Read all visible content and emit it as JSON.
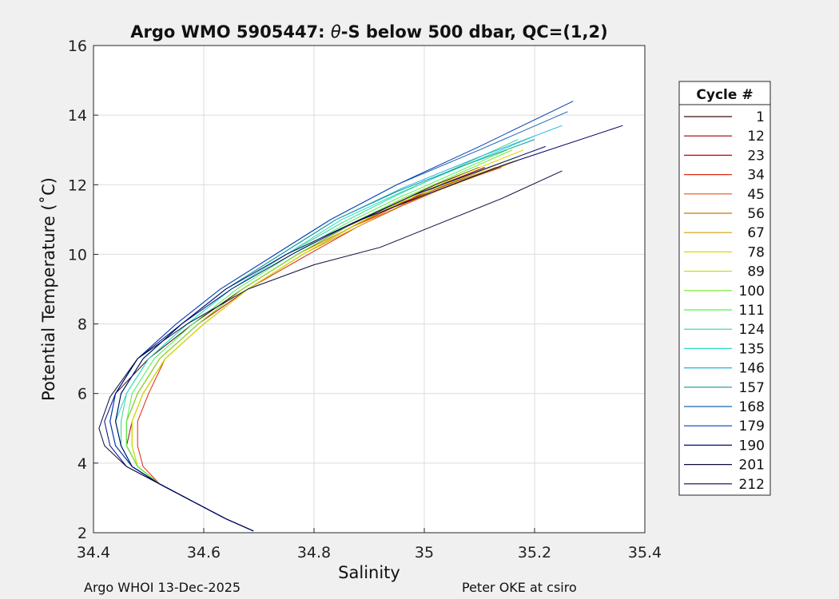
{
  "chart_data": {
    "type": "line",
    "title_prefix": "Argo WMO 5905447: ",
    "title_symbol": "θ",
    "title_suffix": "-S below 500 dbar,  QC=(1,2)",
    "xlabel": "Salinity",
    "ylabel": "Potential Temperature (˚C)",
    "xlim": [
      34.4,
      35.4
    ],
    "ylim": [
      2,
      16
    ],
    "xticks": [
      "34.4",
      "34.6",
      "34.8",
      "35",
      "35.2",
      "35.4"
    ],
    "yticks": [
      "2",
      "4",
      "6",
      "8",
      "10",
      "12",
      "14",
      "16"
    ],
    "grid": true,
    "legend_title": "Cycle #",
    "legend_position": "right-outside",
    "legend": [
      "1",
      "12",
      "23",
      "34",
      "45",
      "56",
      "67",
      "78",
      "89",
      "100",
      "111",
      "124",
      "135",
      "146",
      "157",
      "168",
      "179",
      "190",
      "201",
      "212"
    ],
    "colors": [
      "#3a0a0a",
      "#a00000",
      "#c80000",
      "#dc2810",
      "#e65014",
      "#c87800",
      "#d2a000",
      "#e6d200",
      "#c8e600",
      "#78e628",
      "#50f050",
      "#3cd296",
      "#28dcc8",
      "#1eb4dc",
      "#149696",
      "#1464b4",
      "#0a3cb4",
      "#000a78",
      "#0a0a3c",
      "#000064"
    ],
    "series": [
      {
        "salinity": [
          34.69,
          34.64,
          34.58,
          34.52,
          34.47,
          34.44,
          34.43,
          34.44,
          34.5,
          34.58,
          34.67,
          34.77,
          34.86,
          34.94,
          35.02,
          35.1
        ],
        "theta": [
          2.05,
          2.4,
          2.9,
          3.4,
          3.9,
          4.5,
          5.2,
          6.0,
          7.0,
          8.0,
          9.0,
          10.0,
          10.8,
          11.4,
          12.0,
          12.5
        ]
      },
      {
        "salinity": [
          34.69,
          34.64,
          34.58,
          34.52,
          34.48,
          34.46,
          34.47,
          34.49,
          34.53,
          34.6,
          34.68,
          34.78,
          34.87,
          34.95,
          35.03,
          35.11
        ],
        "theta": [
          2.05,
          2.4,
          2.9,
          3.4,
          3.9,
          4.5,
          5.2,
          6.0,
          7.0,
          8.0,
          9.0,
          10.0,
          10.8,
          11.4,
          12.0,
          12.5
        ]
      },
      {
        "salinity": [
          34.69,
          34.64,
          34.58,
          34.52,
          34.48,
          34.46,
          34.46,
          34.48,
          34.52,
          34.59,
          34.68,
          34.78,
          34.87,
          34.95,
          35.04,
          35.12
        ],
        "theta": [
          2.05,
          2.4,
          2.9,
          3.4,
          3.9,
          4.5,
          5.2,
          6.0,
          7.0,
          8.0,
          9.0,
          10.0,
          10.8,
          11.4,
          12.0,
          12.5
        ]
      },
      {
        "salinity": [
          34.69,
          34.64,
          34.58,
          34.52,
          34.49,
          34.48,
          34.48,
          34.5,
          34.53,
          34.6,
          34.68,
          34.79,
          34.88,
          34.96,
          35.05,
          35.14
        ],
        "theta": [
          2.05,
          2.4,
          2.9,
          3.4,
          3.9,
          4.5,
          5.2,
          6.0,
          7.0,
          8.0,
          9.0,
          10.0,
          10.8,
          11.4,
          12.0,
          12.5
        ]
      },
      {
        "salinity": [
          34.69,
          34.64,
          34.58,
          34.52,
          34.48,
          34.47,
          34.47,
          34.49,
          34.53,
          34.6,
          34.68,
          34.78,
          34.87,
          34.96,
          35.05,
          35.13
        ],
        "theta": [
          2.05,
          2.4,
          2.9,
          3.4,
          3.9,
          4.5,
          5.2,
          6.0,
          7.0,
          8.0,
          9.0,
          10.0,
          10.8,
          11.4,
          12.0,
          12.5
        ]
      },
      {
        "salinity": [
          34.69,
          34.64,
          34.58,
          34.52,
          34.48,
          34.46,
          34.46,
          34.48,
          34.52,
          34.59,
          34.67,
          34.77,
          34.87,
          34.96,
          35.06,
          35.15
        ],
        "theta": [
          2.05,
          2.4,
          2.9,
          3.4,
          3.9,
          4.5,
          5.2,
          6.0,
          7.0,
          8.0,
          9.0,
          10.0,
          10.8,
          11.5,
          12.1,
          12.6
        ]
      },
      {
        "salinity": [
          34.69,
          34.64,
          34.58,
          34.52,
          34.48,
          34.47,
          34.47,
          34.49,
          34.53,
          34.6,
          34.68,
          34.78,
          34.88,
          34.97,
          35.07,
          35.17
        ],
        "theta": [
          2.05,
          2.4,
          2.9,
          3.4,
          3.9,
          4.5,
          5.2,
          6.0,
          7.0,
          8.0,
          9.0,
          10.0,
          10.8,
          11.5,
          12.1,
          12.7
        ]
      },
      {
        "salinity": [
          34.69,
          34.64,
          34.58,
          34.52,
          34.48,
          34.47,
          34.47,
          34.49,
          34.53,
          34.6,
          34.68,
          34.78,
          34.88,
          34.97,
          35.07,
          35.18
        ],
        "theta": [
          2.05,
          2.4,
          2.9,
          3.4,
          3.9,
          4.5,
          5.2,
          6.0,
          7.0,
          8.0,
          9.0,
          10.0,
          10.9,
          11.6,
          12.3,
          13.0
        ]
      },
      {
        "salinity": [
          34.69,
          34.64,
          34.58,
          34.52,
          34.48,
          34.47,
          34.47,
          34.49,
          34.53,
          34.6,
          34.68,
          34.78,
          34.88,
          34.97,
          35.07,
          35.17
        ],
        "theta": [
          2.05,
          2.4,
          2.9,
          3.4,
          3.9,
          4.5,
          5.2,
          6.0,
          7.0,
          8.0,
          9.0,
          10.0,
          10.9,
          11.6,
          12.2,
          12.8
        ]
      },
      {
        "salinity": [
          34.69,
          34.64,
          34.58,
          34.52,
          34.48,
          34.46,
          34.46,
          34.48,
          34.52,
          34.59,
          34.67,
          34.77,
          34.87,
          34.96,
          35.06,
          35.16
        ],
        "theta": [
          2.05,
          2.4,
          2.9,
          3.4,
          3.9,
          4.5,
          5.2,
          6.0,
          7.0,
          8.0,
          9.0,
          10.0,
          10.9,
          11.6,
          12.3,
          13.0
        ]
      },
      {
        "salinity": [
          34.69,
          34.64,
          34.58,
          34.52,
          34.48,
          34.46,
          34.46,
          34.47,
          34.51,
          34.58,
          34.66,
          34.76,
          34.86,
          34.95,
          35.05,
          35.15
        ],
        "theta": [
          2.05,
          2.4,
          2.9,
          3.4,
          3.9,
          4.5,
          5.2,
          6.0,
          7.0,
          8.0,
          9.0,
          10.0,
          10.9,
          11.6,
          12.3,
          13.0
        ]
      },
      {
        "salinity": [
          34.69,
          34.64,
          34.58,
          34.52,
          34.47,
          34.45,
          34.45,
          34.46,
          34.5,
          34.57,
          34.65,
          34.75,
          34.85,
          34.95,
          35.06,
          35.17
        ],
        "theta": [
          2.05,
          2.4,
          2.9,
          3.4,
          3.9,
          4.5,
          5.2,
          6.0,
          7.0,
          8.0,
          9.0,
          10.0,
          10.9,
          11.7,
          12.5,
          13.3
        ]
      },
      {
        "salinity": [
          34.69,
          34.64,
          34.58,
          34.52,
          34.47,
          34.45,
          34.44,
          34.46,
          34.5,
          34.57,
          34.65,
          34.75,
          34.85,
          34.96,
          35.08,
          35.2
        ],
        "theta": [
          2.05,
          2.4,
          2.9,
          3.4,
          3.9,
          4.5,
          5.2,
          6.0,
          7.0,
          8.0,
          9.0,
          10.0,
          11.0,
          11.8,
          12.6,
          13.4
        ]
      },
      {
        "salinity": [
          34.69,
          34.64,
          34.58,
          34.52,
          34.47,
          34.45,
          34.44,
          34.45,
          34.49,
          34.56,
          34.64,
          34.74,
          34.84,
          34.96,
          35.1,
          35.25
        ],
        "theta": [
          2.05,
          2.4,
          2.9,
          3.4,
          3.9,
          4.5,
          5.2,
          6.0,
          7.0,
          8.0,
          9.0,
          10.0,
          11.0,
          11.9,
          12.8,
          13.7
        ]
      },
      {
        "salinity": [
          34.69,
          34.64,
          34.58,
          34.52,
          34.47,
          34.45,
          34.44,
          34.45,
          34.49,
          34.56,
          34.64,
          34.74,
          34.84,
          34.95,
          35.08,
          35.2
        ],
        "theta": [
          2.05,
          2.4,
          2.9,
          3.4,
          3.9,
          4.5,
          5.2,
          6.0,
          7.0,
          8.0,
          9.0,
          10.0,
          11.0,
          11.8,
          12.6,
          13.3
        ]
      },
      {
        "salinity": [
          34.69,
          34.64,
          34.58,
          34.52,
          34.47,
          34.44,
          34.43,
          34.44,
          34.48,
          34.55,
          34.63,
          34.73,
          34.83,
          34.95,
          35.1,
          35.26
        ],
        "theta": [
          2.05,
          2.4,
          2.9,
          3.4,
          3.9,
          4.5,
          5.2,
          6.0,
          7.0,
          8.0,
          9.0,
          10.0,
          11.0,
          12.0,
          13.0,
          14.1
        ]
      },
      {
        "salinity": [
          34.69,
          34.64,
          34.58,
          34.52,
          34.47,
          34.44,
          34.43,
          34.44,
          34.48,
          34.55,
          34.63,
          34.73,
          34.83,
          34.95,
          35.1,
          35.27
        ],
        "theta": [
          2.05,
          2.4,
          2.9,
          3.4,
          3.9,
          4.5,
          5.2,
          6.0,
          7.0,
          8.0,
          9.0,
          10.0,
          11.0,
          12.0,
          13.1,
          14.4
        ]
      },
      {
        "salinity": [
          34.69,
          34.64,
          34.58,
          34.52,
          34.46,
          34.43,
          34.42,
          34.44,
          34.48,
          34.56,
          34.65,
          34.76,
          34.87,
          34.98,
          35.1,
          35.22
        ],
        "theta": [
          2.05,
          2.4,
          2.9,
          3.4,
          3.9,
          4.5,
          5.2,
          6.0,
          7.0,
          8.0,
          9.0,
          10.0,
          10.9,
          11.7,
          12.4,
          13.1
        ]
      },
      {
        "salinity": [
          34.69,
          34.64,
          34.58,
          34.52,
          34.46,
          34.42,
          34.41,
          34.43,
          34.48,
          34.57,
          34.68,
          34.8,
          34.92,
          35.03,
          35.14,
          35.25
        ],
        "theta": [
          2.05,
          2.4,
          2.9,
          3.4,
          3.9,
          4.5,
          5.0,
          5.9,
          7.0,
          8.0,
          9.0,
          9.7,
          10.2,
          10.9,
          11.6,
          12.4
        ]
      },
      {
        "salinity": [
          34.69,
          34.64,
          34.58,
          34.52,
          34.47,
          34.45,
          34.44,
          34.45,
          34.49,
          34.56,
          34.64,
          34.75,
          34.87,
          35.0,
          35.15,
          35.36
        ],
        "theta": [
          2.05,
          2.4,
          2.9,
          3.4,
          3.9,
          4.5,
          5.2,
          6.0,
          7.0,
          8.0,
          9.0,
          10.0,
          10.9,
          11.7,
          12.6,
          13.7
        ]
      }
    ]
  },
  "footer": {
    "left": "Argo WHOI 13-Dec-2025",
    "right": "Peter OKE at csiro"
  }
}
